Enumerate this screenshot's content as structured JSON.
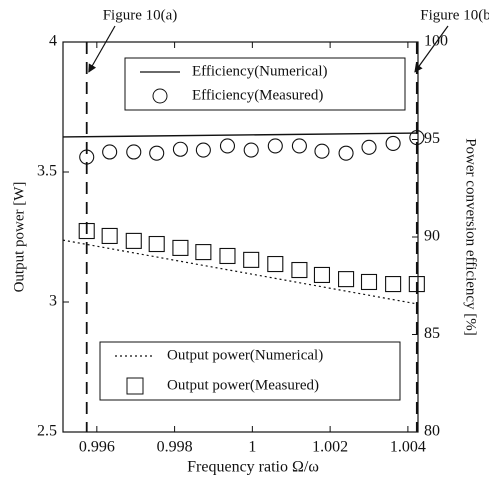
{
  "chart_data": {
    "type": "line",
    "xlabel": "Frequency ratio Ω/ω",
    "ylabel": "Output power [W]",
    "y2label": "Power conversion efficiency [%]",
    "xlim": [
      0.99513,
      1.00426
    ],
    "xticks": [
      0.996,
      0.998,
      {
        "value": 1,
        "label": "1"
      },
      1.002,
      1.004
    ],
    "ylim": [
      2.5,
      4
    ],
    "yticks": [
      2.5,
      3,
      3.5,
      4
    ],
    "y2lim": [
      80,
      100
    ],
    "y2ticks": [
      80,
      85,
      90,
      95,
      100
    ],
    "annotations": [
      {
        "text": "Figure 10(a)",
        "x": 0.99574
      },
      {
        "text": "Figure 10(b)",
        "x": 1.00423
      }
    ],
    "series": [
      {
        "name": "Efficiency(Numerical)",
        "axis": "y2",
        "style": "solid",
        "color": "#111111",
        "x": [
          0.99513,
          1.00426
        ],
        "values": [
          95.13,
          95.33
        ]
      },
      {
        "name": "Efficiency(Measured)",
        "axis": "y2",
        "style": "circle",
        "color": "#111111",
        "x": [
          0.99574,
          0.99633,
          0.99695,
          0.99754,
          0.99815,
          0.99874,
          0.99936,
          0.99997,
          1.00059,
          1.00121,
          1.00179,
          1.00241,
          1.003,
          1.00362,
          1.00423
        ],
        "values": [
          94.1,
          94.36,
          94.36,
          94.3,
          94.5,
          94.46,
          94.67,
          94.46,
          94.67,
          94.67,
          94.4,
          94.3,
          94.6,
          94.8,
          95.1
        ]
      },
      {
        "name": "Output power(Numerical)",
        "axis": "y",
        "style": "dotted",
        "color": "#111111",
        "x": [
          0.99513,
          1.00426
        ],
        "values": [
          3.238,
          2.992
        ]
      },
      {
        "name": "Output power(Measured)",
        "axis": "y",
        "style": "square",
        "color": "#111111",
        "x": [
          0.99574,
          0.99633,
          0.99695,
          0.99754,
          0.99815,
          0.99874,
          0.99936,
          0.99997,
          1.00059,
          1.00121,
          1.00179,
          1.00241,
          1.003,
          1.00362,
          1.00423
        ],
        "values": [
          3.273,
          3.254,
          3.235,
          3.223,
          3.208,
          3.192,
          3.177,
          3.162,
          3.146,
          3.123,
          3.104,
          3.088,
          3.077,
          3.069,
          3.069
        ]
      }
    ]
  }
}
